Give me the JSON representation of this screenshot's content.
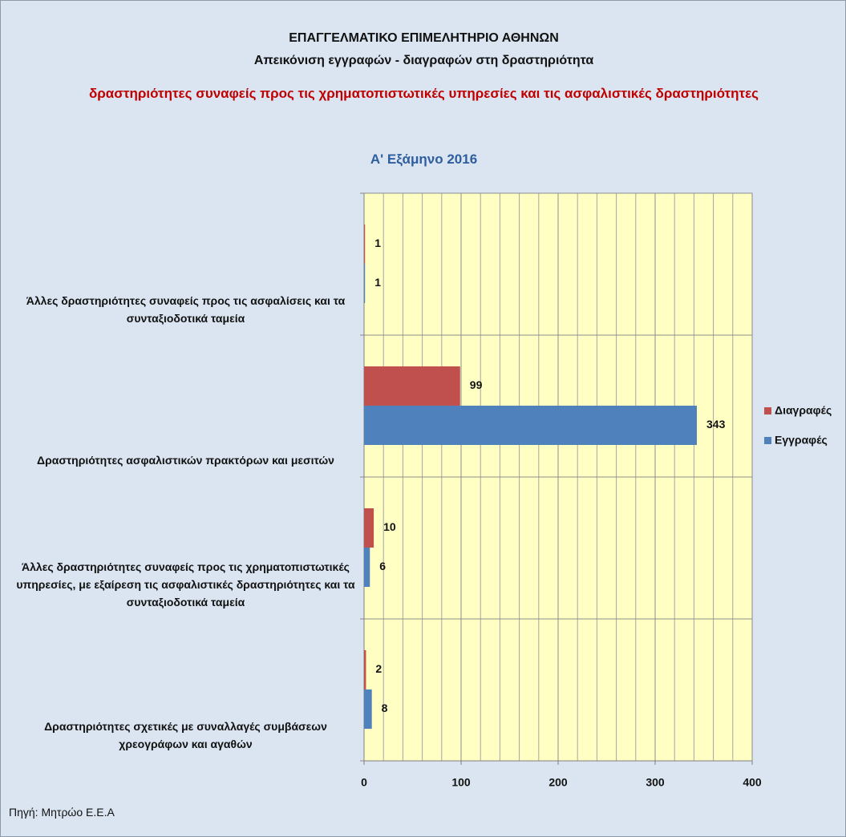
{
  "chart_data": {
    "type": "hbar",
    "title": "ΕΠΑΓΓΕΛΜΑΤΙΚΟ ΕΠΙΜΕΛΗΤΗΡΙΟ ΑΘΗΝΩΝ",
    "subtitle": "Απεικόνιση εγγραφών - διαγραφών στη  δραστηριότητα",
    "subtitle2": "δραστηριότητες συναφείς προς τις χρηματοπιστωτικές υπηρεσίες και τις ασφαλιστικές δραστηριότητες",
    "period": "Α' Εξάμηνο 2016",
    "source": "Πηγή: Μητρώο Ε.Ε.Α",
    "categories": [
      "Άλλες δραστηριότητες συναφείς προς τις ασφαλίσεις και τα συνταξιοδοτικά ταμεία",
      "Δραστηριότητες ασφαλιστικών πρακτόρων και μεσιτών",
      "Άλλες δραστηριότητες συναφείς προς τις χρηματοπιστωτικές υπηρεσίες, με εξαίρεση τις ασφαλιστικές δραστηριότητες και τα συνταξιοδοτικά ταμεία",
      "Δραστηριότητες σχετικές με συναλλαγές συμβάσεων χρεογράφων και αγαθών"
    ],
    "series": [
      {
        "name": "Διαγραφές",
        "color": "#c0504d",
        "values": [
          1,
          99,
          10,
          2
        ]
      },
      {
        "name": "Εγγραφές",
        "color": "#4f81bd",
        "values": [
          1,
          343,
          6,
          8
        ]
      }
    ],
    "xlim": [
      0,
      400
    ],
    "xticks": [
      0,
      100,
      200,
      300,
      400
    ],
    "minor_grid_step": 20,
    "grid": true,
    "legend": "right"
  }
}
